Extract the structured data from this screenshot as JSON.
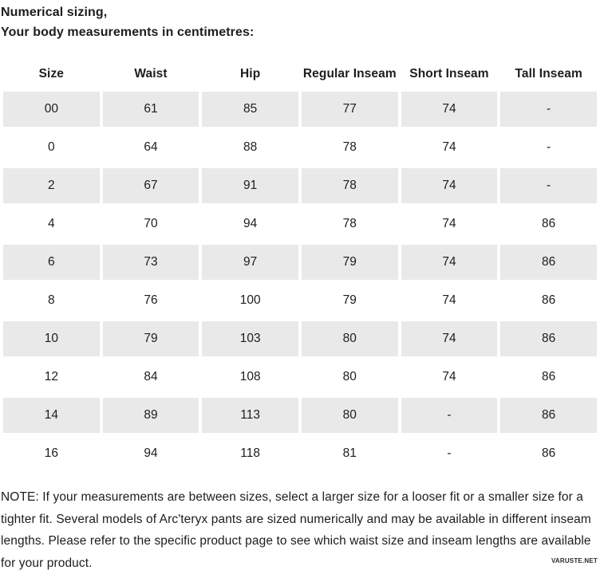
{
  "page": {
    "title_line1": "Numerical sizing,",
    "title_line2": "Your body measurements in centimetres:"
  },
  "table": {
    "columns": [
      "Size",
      "Waist",
      "Hip",
      "Regular Inseam",
      "Short Inseam",
      "Tall Inseam"
    ],
    "rows": [
      [
        "00",
        "61",
        "85",
        "77",
        "74",
        "-"
      ],
      [
        "0",
        "64",
        "88",
        "78",
        "74",
        "-"
      ],
      [
        "2",
        "67",
        "91",
        "78",
        "74",
        "-"
      ],
      [
        "4",
        "70",
        "94",
        "78",
        "74",
        "86"
      ],
      [
        "6",
        "73",
        "97",
        "79",
        "74",
        "86"
      ],
      [
        "8",
        "76",
        "100",
        "79",
        "74",
        "86"
      ],
      [
        "10",
        "79",
        "103",
        "80",
        "74",
        "86"
      ],
      [
        "12",
        "84",
        "108",
        "80",
        "74",
        "86"
      ],
      [
        "14",
        "89",
        "113",
        "80",
        "-",
        "86"
      ],
      [
        "16",
        "94",
        "118",
        "81",
        "-",
        "86"
      ]
    ]
  },
  "note": "NOTE: If your measurements are between sizes, select a larger size for a looser fit or a smaller size for a tighter fit. Several models of Arc'teryx pants are sized numerically and may be available in different inseam lengths. Please refer to the specific product page to see which waist size and inseam lengths are available for your product.",
  "watermark": "VARUSTE.NET",
  "colors": {
    "stripe": "#e9e9e9",
    "text": "#1d1d1d",
    "background": "#ffffff"
  }
}
